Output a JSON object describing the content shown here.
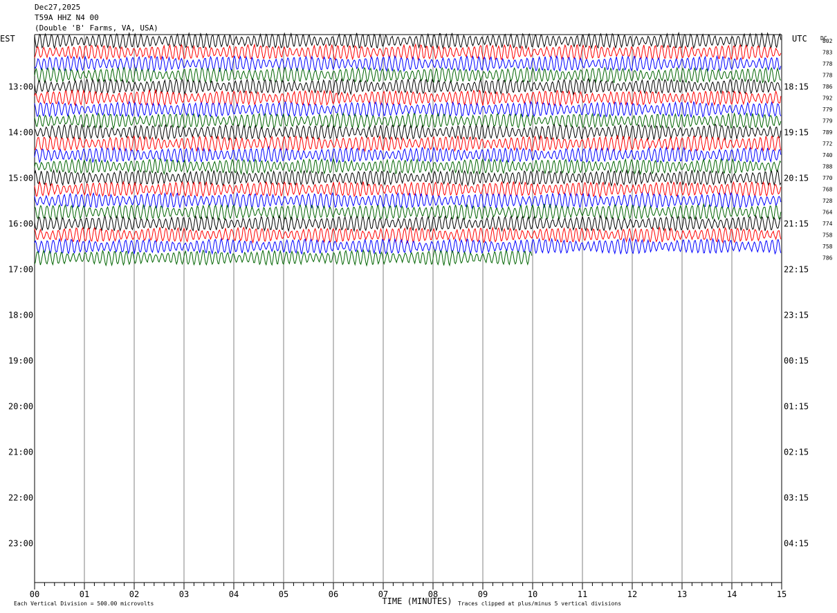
{
  "header": {
    "date": "Dec27,2025",
    "station": "T59A HHZ N4 00",
    "location": "(Double 'B' Farms, VA, USA)"
  },
  "axis_labels": {
    "left_zone": "EST",
    "right_zone": "UTC",
    "dc_label": "DC",
    "xlabel": "TIME (MINUTES)"
  },
  "footer": {
    "left_note": "Each Vertical Division =  500.00 microvolts",
    "right_note": "Traces clipped at plus/minus 5 vertical divisions"
  },
  "chart_data": {
    "type": "line",
    "title": "Dec27,2025 T59A HHZ N4 00 (Double 'B' Farms, VA, USA)",
    "xlabel": "TIME (MINUTES)",
    "ylabel": "",
    "xlim": [
      0,
      15
    ],
    "x_ticks": [
      "00",
      "01",
      "02",
      "03",
      "04",
      "05",
      "06",
      "07",
      "08",
      "09",
      "10",
      "11",
      "12",
      "13",
      "14",
      "15"
    ],
    "left_hour_labels": [
      "13:00",
      "14:00",
      "15:00",
      "16:00",
      "17:00",
      "18:00",
      "19:00",
      "20:00",
      "21:00",
      "22:00",
      "23:00"
    ],
    "right_hour_labels": [
      "18:15",
      "19:15",
      "20:15",
      "21:15",
      "22:15",
      "23:15",
      "00:15",
      "01:15",
      "02:15",
      "03:15",
      "04:15"
    ],
    "trace_color_cycle": [
      "#000000",
      "#ff0000",
      "#0000ff",
      "#006400"
    ],
    "traces_per_hour": 4,
    "minutes_per_trace": 15,
    "dc_offsets": [
      802,
      783,
      778,
      778,
      786,
      792,
      779,
      779,
      789,
      772,
      740,
      788,
      770,
      768,
      728,
      764,
      774,
      758,
      758,
      786
    ],
    "last_trace_end_minute": 10,
    "grid": true
  }
}
